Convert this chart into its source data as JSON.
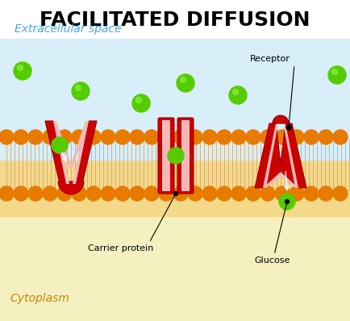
{
  "title": "FACILITATED DIFFUSION",
  "title_fontsize": 18,
  "title_fontweight": "bold",
  "label_extracellular": "Extracellular space",
  "label_cytoplasm": "Cytoplasm",
  "label_carrier": "Carrier protein",
  "label_glucose": "Glucose",
  "label_receptor": "Receptor",
  "color_bg": "#ffffff",
  "color_extracellular_bg": "#d8eef8",
  "color_cytoplasm_bg": "#f5f0c0",
  "color_membrane_bg": "#f5d98b",
  "color_phospholipid_head": "#e87a00",
  "color_phospholipid_tail": "#d4a96a",
  "color_protein_outer": "#cc0000",
  "color_protein_inner": "#f5b8b8",
  "color_molecule": "#55cc00",
  "color_label_extracellular": "#4da6e8",
  "color_label_cytoplasm": "#cc8800",
  "color_label_black": "#000000"
}
